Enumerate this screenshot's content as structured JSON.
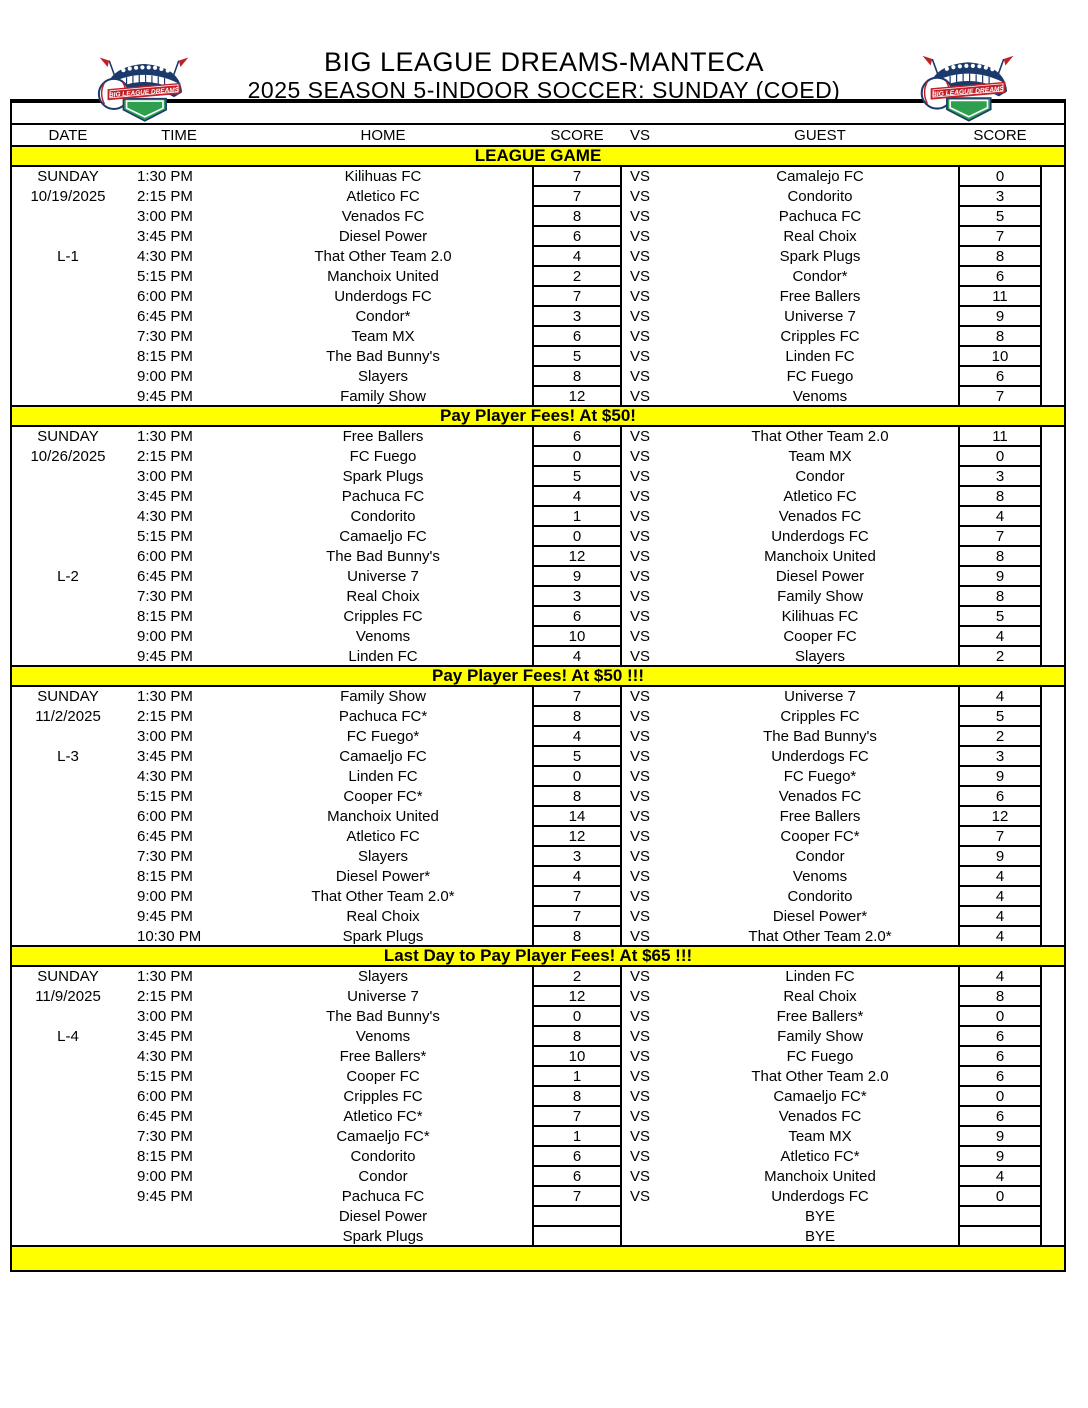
{
  "header": {
    "title": "BIG LEAGUE DREAMS-MANTECA",
    "subtitle": "2025 SEASON 5-INDOOR SOCCER: SUNDAY (COED)",
    "logo_banner_text": "BIG LEAGUE DREAMS"
  },
  "colors": {
    "banner_yellow": "#FFFF00",
    "text_black": "#000000",
    "logo_navy": "#1b3a6b",
    "logo_red": "#c02028",
    "logo_green": "#2e9e4f"
  },
  "table": {
    "columns": [
      "DATE",
      "TIME",
      "HOME",
      "SCORE",
      "VS",
      "GUEST",
      "SCORE"
    ],
    "league_banner": "LEAGUE GAME",
    "sections": [
      {
        "day": "SUNDAY",
        "date": "10/19/2025",
        "league_label": "L-1",
        "banner_after": "Pay Player Fees! At $50!",
        "games": [
          {
            "d": "SUNDAY",
            "t": "1:30 PM",
            "home": "Kilihuas FC",
            "hs": "7",
            "vs": "VS",
            "guest": "Camalejo FC",
            "gs": "0"
          },
          {
            "d": "10/19/2025",
            "t": "2:15 PM",
            "home": "Atletico FC",
            "hs": "7",
            "vs": "VS",
            "guest": "Condorito",
            "gs": "3"
          },
          {
            "d": "",
            "t": "3:00 PM",
            "home": "Venados FC",
            "hs": "8",
            "vs": "VS",
            "guest": "Pachuca FC",
            "gs": "5"
          },
          {
            "d": "",
            "t": "3:45 PM",
            "home": "Diesel Power",
            "hs": "6",
            "vs": "VS",
            "guest": "Real Choix",
            "gs": "7"
          },
          {
            "d": "L-1",
            "t": "4:30 PM",
            "home": "That Other Team 2.0",
            "hs": "4",
            "vs": "VS",
            "guest": "Spark Plugs",
            "gs": "8"
          },
          {
            "d": "",
            "t": "5:15 PM",
            "home": "Manchoix United",
            "hs": "2",
            "vs": "VS",
            "guest": "Condor*",
            "gs": "6"
          },
          {
            "d": "",
            "t": "6:00 PM",
            "home": "Underdogs FC",
            "hs": "7",
            "vs": "VS",
            "guest": "Free Ballers",
            "gs": "11"
          },
          {
            "d": "",
            "t": "6:45 PM",
            "home": "Condor*",
            "hs": "3",
            "vs": "VS",
            "guest": "Universe 7",
            "gs": "9"
          },
          {
            "d": "",
            "t": "7:30 PM",
            "home": "Team MX",
            "hs": "6",
            "vs": "VS",
            "guest": "Cripples FC",
            "gs": "8"
          },
          {
            "d": "",
            "t": "8:15 PM",
            "home": "The Bad Bunny's",
            "hs": "5",
            "vs": "VS",
            "guest": "Linden FC",
            "gs": "10"
          },
          {
            "d": "",
            "t": "9:00 PM",
            "home": "Slayers",
            "hs": "8",
            "vs": "VS",
            "guest": "FC Fuego",
            "gs": "6"
          },
          {
            "d": "",
            "t": "9:45 PM",
            "home": "Family Show",
            "hs": "12",
            "vs": "VS",
            "guest": "Venoms",
            "gs": "7"
          }
        ]
      },
      {
        "day": "SUNDAY",
        "date": "10/26/2025",
        "league_label": "L-2",
        "banner_after": "Pay Player Fees! At $50 !!!",
        "games": [
          {
            "d": "SUNDAY",
            "t": "1:30 PM",
            "home": "Free Ballers",
            "hs": "6",
            "vs": "VS",
            "guest": "That Other Team 2.0",
            "gs": "11"
          },
          {
            "d": "10/26/2025",
            "t": "2:15 PM",
            "home": "FC Fuego",
            "hs": "0",
            "vs": "VS",
            "guest": "Team MX",
            "gs": "0"
          },
          {
            "d": "",
            "t": "3:00 PM",
            "home": "Spark Plugs",
            "hs": "5",
            "vs": "VS",
            "guest": "Condor",
            "gs": "3"
          },
          {
            "d": "",
            "t": "3:45 PM",
            "home": "Pachuca FC",
            "hs": "4",
            "vs": "VS",
            "guest": "Atletico FC",
            "gs": "8"
          },
          {
            "d": "",
            "t": "4:30 PM",
            "home": "Condorito",
            "hs": "1",
            "vs": "VS",
            "guest": "Venados FC",
            "gs": "4"
          },
          {
            "d": "",
            "t": "5:15 PM",
            "home": "Camaeljo FC",
            "hs": "0",
            "vs": "VS",
            "guest": "Underdogs FC",
            "gs": "7"
          },
          {
            "d": "",
            "t": "6:00 PM",
            "home": "The Bad Bunny's",
            "hs": "12",
            "vs": "VS",
            "guest": "Manchoix United",
            "gs": "8"
          },
          {
            "d": "L-2",
            "t": "6:45 PM",
            "home": "Universe 7",
            "hs": "9",
            "vs": "VS",
            "guest": "Diesel Power",
            "gs": "9"
          },
          {
            "d": "",
            "t": "7:30 PM",
            "home": "Real Choix",
            "hs": "3",
            "vs": "VS",
            "guest": "Family Show",
            "gs": "8"
          },
          {
            "d": "",
            "t": "8:15 PM",
            "home": "Cripples FC",
            "hs": "6",
            "vs": "VS",
            "guest": "Kilihuas FC",
            "gs": "5"
          },
          {
            "d": "",
            "t": "9:00 PM",
            "home": "Venoms",
            "hs": "10",
            "vs": "VS",
            "guest": "Cooper FC",
            "gs": "4"
          },
          {
            "d": "",
            "t": "9:45 PM",
            "home": "Linden FC",
            "hs": "4",
            "vs": "VS",
            "guest": "Slayers",
            "gs": "2"
          }
        ]
      },
      {
        "day": "SUNDAY",
        "date": "11/2/2025",
        "league_label": "L-3",
        "banner_after": "Last Day to Pay Player Fees! At $65 !!!",
        "games": [
          {
            "d": "SUNDAY",
            "t": "1:30 PM",
            "home": "Family Show",
            "hs": "7",
            "vs": "VS",
            "guest": "Universe 7",
            "gs": "4"
          },
          {
            "d": "11/2/2025",
            "t": "2:15 PM",
            "home": "Pachuca FC*",
            "hs": "8",
            "vs": "VS",
            "guest": "Cripples FC",
            "gs": "5"
          },
          {
            "d": "",
            "t": "3:00 PM",
            "home": "FC Fuego*",
            "hs": "4",
            "vs": "VS",
            "guest": "The Bad Bunny's",
            "gs": "2"
          },
          {
            "d": "L-3",
            "t": "3:45 PM",
            "home": "Camaeljo FC",
            "hs": "5",
            "vs": "VS",
            "guest": "Underdogs FC",
            "gs": "3"
          },
          {
            "d": "",
            "t": "4:30 PM",
            "home": "Linden FC",
            "hs": "0",
            "vs": "VS",
            "guest": "FC Fuego*",
            "gs": "9"
          },
          {
            "d": "",
            "t": "5:15 PM",
            "home": "Cooper FC*",
            "hs": "8",
            "vs": "VS",
            "guest": "Venados FC",
            "gs": "6"
          },
          {
            "d": "",
            "t": "6:00 PM",
            "home": "Manchoix United",
            "hs": "14",
            "vs": "VS",
            "guest": "Free Ballers",
            "gs": "12"
          },
          {
            "d": "",
            "t": "6:45 PM",
            "home": "Atletico FC",
            "hs": "12",
            "vs": "VS",
            "guest": "Cooper FC*",
            "gs": "7"
          },
          {
            "d": "",
            "t": "7:30 PM",
            "home": "Slayers",
            "hs": "3",
            "vs": "VS",
            "guest": "Condor",
            "gs": "9"
          },
          {
            "d": "",
            "t": "8:15 PM",
            "home": "Diesel Power*",
            "hs": "4",
            "vs": "VS",
            "guest": "Venoms",
            "gs": "4"
          },
          {
            "d": "",
            "t": "9:00 PM",
            "home": "That Other Team 2.0*",
            "hs": "7",
            "vs": "VS",
            "guest": "Condorito",
            "gs": "4"
          },
          {
            "d": "",
            "t": "9:45 PM",
            "home": "Real Choix",
            "hs": "7",
            "vs": "VS",
            "guest": "Diesel Power*",
            "gs": "4"
          },
          {
            "d": "",
            "t": "10:30 PM",
            "home": "Spark Plugs",
            "hs": "8",
            "vs": "VS",
            "guest": "That Other Team 2.0*",
            "gs": "4"
          }
        ]
      },
      {
        "day": "SUNDAY",
        "date": "11/9/2025",
        "league_label": "L-4",
        "banner_after": null,
        "games": [
          {
            "d": "SUNDAY",
            "t": "1:30 PM",
            "home": "Slayers",
            "hs": "2",
            "vs": "VS",
            "guest": "Linden FC",
            "gs": "4"
          },
          {
            "d": "11/9/2025",
            "t": "2:15 PM",
            "home": "Universe 7",
            "hs": "12",
            "vs": "VS",
            "guest": "Real Choix",
            "gs": "8"
          },
          {
            "d": "",
            "t": "3:00 PM",
            "home": "The Bad Bunny's",
            "hs": "0",
            "vs": "VS",
            "guest": "Free Ballers*",
            "gs": "0"
          },
          {
            "d": "L-4",
            "t": "3:45 PM",
            "home": "Venoms",
            "hs": "8",
            "vs": "VS",
            "guest": "Family Show",
            "gs": "6"
          },
          {
            "d": "",
            "t": "4:30 PM",
            "home": "Free Ballers*",
            "hs": "10",
            "vs": "VS",
            "guest": "FC Fuego",
            "gs": "6"
          },
          {
            "d": "",
            "t": "5:15 PM",
            "home": "Cooper FC",
            "hs": "1",
            "vs": "VS",
            "guest": "That Other Team 2.0",
            "gs": "6"
          },
          {
            "d": "",
            "t": "6:00 PM",
            "home": "Cripples FC",
            "hs": "8",
            "vs": "VS",
            "guest": "Camaeljo FC*",
            "gs": "0"
          },
          {
            "d": "",
            "t": "6:45 PM",
            "home": "Atletico FC*",
            "hs": "7",
            "vs": "VS",
            "guest": "Venados FC",
            "gs": "6"
          },
          {
            "d": "",
            "t": "7:30 PM",
            "home": "Camaeljo FC*",
            "hs": "1",
            "vs": "VS",
            "guest": "Team MX",
            "gs": "9"
          },
          {
            "d": "",
            "t": "8:15 PM",
            "home": "Condorito",
            "hs": "6",
            "vs": "VS",
            "guest": "Atletico FC*",
            "gs": "9"
          },
          {
            "d": "",
            "t": "9:00 PM",
            "home": "Condor",
            "hs": "6",
            "vs": "VS",
            "guest": "Manchoix United",
            "gs": "4"
          },
          {
            "d": "",
            "t": "9:45 PM",
            "home": "Pachuca FC",
            "hs": "7",
            "vs": "VS",
            "guest": "Underdogs FC",
            "gs": "0"
          },
          {
            "d": "",
            "t": "",
            "home": "Diesel Power",
            "hs": "",
            "vs": "",
            "guest": "BYE",
            "gs": ""
          },
          {
            "d": "",
            "t": "",
            "home": "Spark Plugs",
            "hs": "",
            "vs": "",
            "guest": "BYE",
            "gs": ""
          }
        ]
      }
    ]
  }
}
